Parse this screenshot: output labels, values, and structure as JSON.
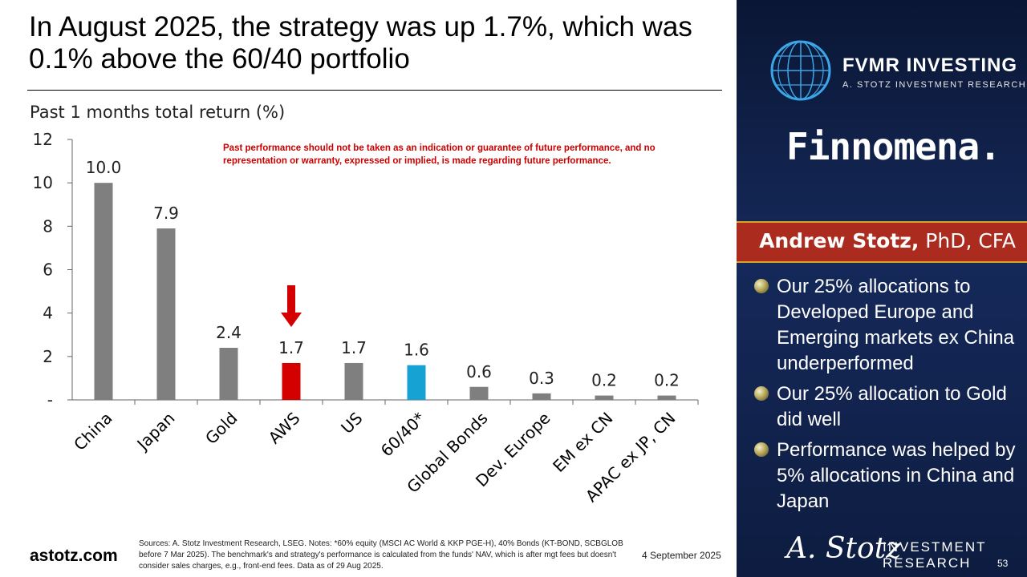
{
  "title": "In August 2025, the strategy was up 1.7%, which was 0.1% above the 60/40 portfolio",
  "chart_subtitle": "Past 1 months total return (%)",
  "disclaimer": "Past performance should not be taken as an indication or guarantee of future performance, and no representation or warranty, expressed or implied, is made regarding future performance.",
  "chart_data": {
    "type": "bar",
    "title": "Past 1 months total return (%)",
    "categories": [
      "China",
      "Japan",
      "Gold",
      "AWS",
      "US",
      "60/40*",
      "Global Bonds",
      "Dev. Europe",
      "EM ex CN",
      "APAC ex JP, CN"
    ],
    "values": [
      10.0,
      7.9,
      2.4,
      1.7,
      1.7,
      1.6,
      0.6,
      0.3,
      0.2,
      0.2
    ],
    "value_labels": [
      "10.0",
      "7.9",
      "2.4",
      "1.7",
      "1.7",
      "1.6",
      "0.6",
      "0.3",
      "0.2",
      "0.2"
    ],
    "bar_colors": [
      "#7f7f7f",
      "#7f7f7f",
      "#7f7f7f",
      "#d40000",
      "#7f7f7f",
      "#17a2d4",
      "#7f7f7f",
      "#7f7f7f",
      "#7f7f7f",
      "#7f7f7f"
    ],
    "highlight_category": "AWS",
    "highlight_arrow_color": "#d40000",
    "ylim": [
      0,
      12
    ],
    "yticks": [
      0,
      2,
      4,
      6,
      8,
      10,
      12
    ],
    "ytick_labels": [
      "-",
      "2",
      "4",
      "6",
      "8",
      "10",
      "12"
    ],
    "grid": false,
    "legend": "none"
  },
  "footer": {
    "site": "astotz.com",
    "notes": "Sources: A. Stotz Investment Research, LSEG. Notes: *60% equity (MSCI AC World & KKP PGE-H), 40% Bonds (KT-BOND, SCBGLOB before 7 Mar 2025). The benchmark's and strategy's performance is calculated from the funds' NAV, which is after mgt fees but doesn't consider sales charges, e.g., front-end fees. Data as of 29 Aug 2025.",
    "date": "4 September 2025"
  },
  "side_panel": {
    "brand_name": "FVMR INVESTING",
    "brand_sub": "A. STOTZ INVESTMENT RESEARCH",
    "partner": "Finnomena.",
    "author_name": "Andrew Stotz,",
    "author_credentials": " PhD, CFA",
    "bullets": [
      "Our 25% allocations to Developed Europe and Emerging markets ex China underperformed",
      "Our 25% allocation to Gold did well",
      "Performance was helped by 5% allocations in China and Japan"
    ],
    "signature": "A. Stotz",
    "research_line1": "INVESTMENT",
    "research_line2": "RESEARCH",
    "page_number": "53"
  },
  "colors": {
    "panel_dark": "#0a1634",
    "banner_red": "#ab2b1f",
    "banner_gold": "#d9a521",
    "disclaimer_red": "#cc0000"
  },
  "icons": [
    "globe-logo-icon",
    "bullet-sphere-icon",
    "down-arrow-icon"
  ]
}
